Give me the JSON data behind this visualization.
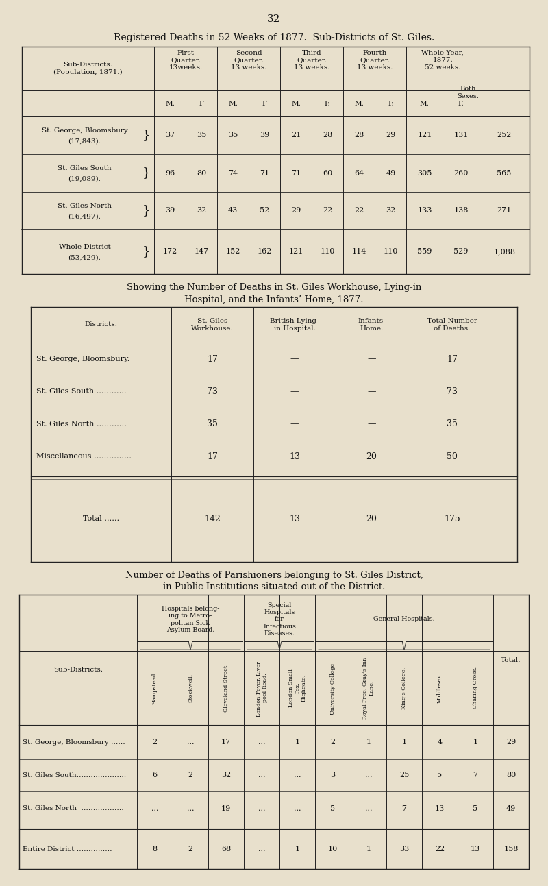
{
  "bg_color": "#e8e0cc",
  "page_number": "32",
  "title1": "Registered Deaths in 52 Weeks of 1877.  Sub-Districts of St. Giles.",
  "title2a": "Showing the Number of Deaths in St. Giles Workhouse, Lying-in",
  "title2b": "Hospital, and the Infants’ Home, 1877.",
  "title3a": "Number of Deaths of Parishioners belonging to St. Giles District,",
  "title3b": "in Public Institutions situated out of the District.",
  "table1": {
    "rows": [
      {
        "label1": "St. George, Bloomsbury",
        "label2": "(17,843).",
        "values": [
          "37",
          "35",
          "35",
          "39",
          "21",
          "28",
          "28",
          "29",
          "121",
          "131",
          "252"
        ]
      },
      {
        "label1": "St. Giles South",
        "label2": "(19,089).",
        "values": [
          "96",
          "80",
          "74",
          "71",
          "71",
          "60",
          "64",
          "49",
          "305",
          "260",
          "565"
        ]
      },
      {
        "label1": "St. Giles North",
        "label2": "(16,497).",
        "values": [
          "39",
          "32",
          "43",
          "52",
          "29",
          "22",
          "22",
          "32",
          "133",
          "138",
          "271"
        ]
      },
      {
        "label1": "Whole District",
        "label2": "(53,429).",
        "values": [
          "172",
          "147",
          "152",
          "162",
          "121",
          "110",
          "114",
          "110",
          "559",
          "529",
          "1,088"
        ]
      }
    ]
  },
  "table2": {
    "col_headers": [
      "St. Giles\nWorkhouse.",
      "British Lying-\nin Hospital.",
      "Infants'\nHome.",
      "Total Number\nof Deaths."
    ],
    "rows": [
      {
        "label": "St. George, Bloomsbury.",
        "values": [
          "17",
          "—",
          "—",
          "17"
        ]
      },
      {
        "label": "St. Giles South …………",
        "values": [
          "73",
          "—",
          "—",
          "73"
        ]
      },
      {
        "label": "St. Giles North …………",
        "values": [
          "35",
          "—",
          "—",
          "35"
        ]
      },
      {
        "label": "Miscellaneous ……………",
        "values": [
          "17",
          "13",
          "20",
          "50"
        ]
      }
    ],
    "total_row": {
      "label": "Total ……",
      "values": [
        "142",
        "13",
        "20",
        "175"
      ]
    }
  },
  "table3": {
    "col_headers": [
      "Hampstead.",
      "Stockwell.",
      "Cleveland Street.",
      "London Fever, Liver-\npool Road.",
      "London Small\nPox,\nHighgate.",
      "University College.",
      "Royal Free, Gray’s Inn\nLane.",
      "King’s College.",
      "Middlesex.",
      "Charing Cross.",
      "Total."
    ],
    "rows": [
      {
        "label": "St. George, Bloomsbury ……",
        "values": [
          "2",
          "...",
          "17",
          "...",
          "1",
          "2",
          "1",
          "1",
          "4",
          "1",
          "29"
        ]
      },
      {
        "label": "St. Giles South…………………",
        "values": [
          "6",
          "2",
          "32",
          "...",
          "...",
          "3",
          "...",
          "25",
          "5",
          "7",
          "80"
        ]
      },
      {
        "label": "St. Giles North  ………………",
        "values": [
          "...",
          "...",
          "19",
          "...",
          "...",
          "5",
          "...",
          "7",
          "13",
          "5",
          "49"
        ]
      }
    ],
    "total_row": {
      "label": "Entire District ……………",
      "values": [
        "8",
        "2",
        "68",
        "...",
        "1",
        "10",
        "1",
        "33",
        "22",
        "13",
        "158"
      ]
    }
  }
}
